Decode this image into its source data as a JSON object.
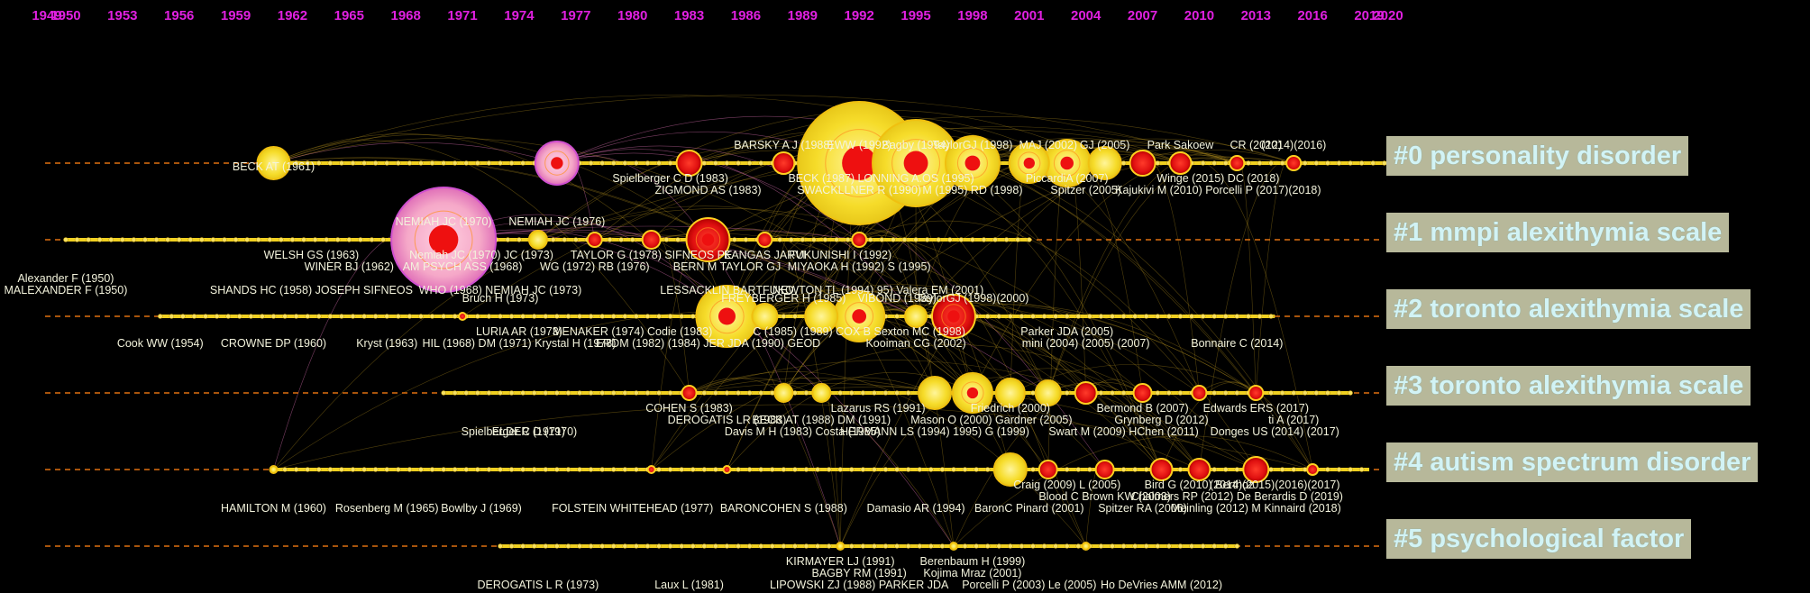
{
  "chart_data": {
    "type": "timeline",
    "years": [
      1949,
      1950,
      1953,
      1956,
      1959,
      1962,
      1965,
      1968,
      1971,
      1974,
      1977,
      1980,
      1983,
      1986,
      1989,
      1992,
      1995,
      1998,
      2001,
      2004,
      2007,
      2010,
      2013,
      2016,
      2019,
      2020
    ],
    "year_range": [
      1949,
      2020
    ],
    "year_label_color": "#e020e0",
    "timeline_color": "#f0d020",
    "dash_color": "#e07010",
    "clusters": [
      {
        "id": 0,
        "label": "#0 personality disorder",
        "start": 1961,
        "end": 2020
      },
      {
        "id": 1,
        "label": "#1 mmpi alexithymia scale",
        "start": 1950,
        "end": 2001
      },
      {
        "id": 2,
        "label": "#2 toronto alexithymia scale",
        "start": 1955,
        "end": 2014
      },
      {
        "id": 3,
        "label": "#3 toronto alexithymia scale",
        "start": 1970,
        "end": 2018
      },
      {
        "id": 4,
        "label": "#4 autism spectrum disorder",
        "start": 1961,
        "end": 2019
      },
      {
        "id": 5,
        "label": "#5 psychological factor",
        "start": 1973,
        "end": 2012
      }
    ],
    "nodes": [
      {
        "cluster": 0,
        "year": 1961,
        "size": 18,
        "color": "yellow"
      },
      {
        "cluster": 0,
        "year": 1976,
        "size": 24,
        "color": "pink"
      },
      {
        "cluster": 0,
        "year": 1983,
        "size": 14,
        "color": "red"
      },
      {
        "cluster": 0,
        "year": 1988,
        "size": 12,
        "color": "red"
      },
      {
        "cluster": 0,
        "year": 1992,
        "size": 68,
        "color": "yellow"
      },
      {
        "cluster": 0,
        "year": 1995,
        "size": 48,
        "color": "yellow"
      },
      {
        "cluster": 0,
        "year": 1998,
        "size": 30,
        "color": "yellow"
      },
      {
        "cluster": 0,
        "year": 2001,
        "size": 22,
        "color": "yellow"
      },
      {
        "cluster": 0,
        "year": 2003,
        "size": 26,
        "color": "yellow"
      },
      {
        "cluster": 0,
        "year": 2005,
        "size": 18,
        "color": "yellow"
      },
      {
        "cluster": 0,
        "year": 2007,
        "size": 14,
        "color": "red"
      },
      {
        "cluster": 0,
        "year": 2009,
        "size": 12,
        "color": "red"
      },
      {
        "cluster": 0,
        "year": 2012,
        "size": 8,
        "color": "red"
      },
      {
        "cluster": 0,
        "year": 2015,
        "size": 8,
        "color": "red"
      },
      {
        "cluster": 1,
        "year": 1970,
        "size": 58,
        "color": "pink"
      },
      {
        "cluster": 1,
        "year": 1975,
        "size": 10,
        "color": "yellow"
      },
      {
        "cluster": 1,
        "year": 1978,
        "size": 8,
        "color": "red"
      },
      {
        "cluster": 1,
        "year": 1981,
        "size": 10,
        "color": "red"
      },
      {
        "cluster": 1,
        "year": 1984,
        "size": 24,
        "color": "red"
      },
      {
        "cluster": 1,
        "year": 1987,
        "size": 8,
        "color": "red"
      },
      {
        "cluster": 1,
        "year": 1992,
        "size": 8,
        "color": "red"
      },
      {
        "cluster": 2,
        "year": 1985,
        "size": 34,
        "color": "yellow"
      },
      {
        "cluster": 2,
        "year": 1987,
        "size": 14,
        "color": "yellow"
      },
      {
        "cluster": 2,
        "year": 1990,
        "size": 18,
        "color": "yellow"
      },
      {
        "cluster": 2,
        "year": 1992,
        "size": 28,
        "color": "yellow"
      },
      {
        "cluster": 2,
        "year": 1995,
        "size": 12,
        "color": "yellow"
      },
      {
        "cluster": 2,
        "year": 1997,
        "size": 24,
        "color": "red"
      },
      {
        "cluster": 2,
        "year": 1971,
        "size": 4,
        "color": "red"
      },
      {
        "cluster": 3,
        "year": 1983,
        "size": 8,
        "color": "red"
      },
      {
        "cluster": 3,
        "year": 1988,
        "size": 10,
        "color": "yellow"
      },
      {
        "cluster": 3,
        "year": 1990,
        "size": 10,
        "color": "yellow"
      },
      {
        "cluster": 3,
        "year": 1996,
        "size": 18,
        "color": "yellow"
      },
      {
        "cluster": 3,
        "year": 1998,
        "size": 22,
        "color": "yellow"
      },
      {
        "cluster": 3,
        "year": 2000,
        "size": 16,
        "color": "yellow"
      },
      {
        "cluster": 3,
        "year": 2002,
        "size": 14,
        "color": "yellow"
      },
      {
        "cluster": 3,
        "year": 2004,
        "size": 12,
        "color": "red"
      },
      {
        "cluster": 3,
        "year": 2007,
        "size": 10,
        "color": "red"
      },
      {
        "cluster": 3,
        "year": 2010,
        "size": 8,
        "color": "red"
      },
      {
        "cluster": 3,
        "year": 2013,
        "size": 8,
        "color": "red"
      },
      {
        "cluster": 4,
        "year": 1961,
        "size": 4,
        "color": "yellow"
      },
      {
        "cluster": 4,
        "year": 1981,
        "size": 4,
        "color": "red"
      },
      {
        "cluster": 4,
        "year": 1985,
        "size": 4,
        "color": "red"
      },
      {
        "cluster": 4,
        "year": 2000,
        "size": 18,
        "color": "yellow"
      },
      {
        "cluster": 4,
        "year": 2002,
        "size": 10,
        "color": "red"
      },
      {
        "cluster": 4,
        "year": 2005,
        "size": 10,
        "color": "red"
      },
      {
        "cluster": 4,
        "year": 2008,
        "size": 12,
        "color": "red"
      },
      {
        "cluster": 4,
        "year": 2010,
        "size": 12,
        "color": "red"
      },
      {
        "cluster": 4,
        "year": 2013,
        "size": 14,
        "color": "red"
      },
      {
        "cluster": 4,
        "year": 2016,
        "size": 6,
        "color": "red"
      },
      {
        "cluster": 5,
        "year": 1991,
        "size": 4,
        "color": "yellow"
      },
      {
        "cluster": 5,
        "year": 1997,
        "size": 4,
        "color": "yellow"
      },
      {
        "cluster": 5,
        "year": 2004,
        "size": 4,
        "color": "yellow"
      }
    ],
    "reference_labels": [
      {
        "cluster": 0,
        "row": 0,
        "year": 1961,
        "text": "BECK AT (1961)"
      },
      {
        "cluster": 0,
        "row": -1,
        "year": 1988,
        "text": "BARSKY A J (1988)"
      },
      {
        "cluster": 0,
        "row": -1,
        "year": 1992,
        "text": "EWW (1992)"
      },
      {
        "cluster": 0,
        "row": -1,
        "year": 1995,
        "text": "Bagby (1994)"
      },
      {
        "cluster": 0,
        "row": -1,
        "year": 1998,
        "text": "TaylorGJ (1998)"
      },
      {
        "cluster": 0,
        "row": -1,
        "year": 2002,
        "text": "MAJ (2002)"
      },
      {
        "cluster": 0,
        "row": -1,
        "year": 2005,
        "text": "GJ (2005)"
      },
      {
        "cluster": 0,
        "row": -1,
        "year": 2009,
        "text": "Park Sakoew"
      },
      {
        "cluster": 0,
        "row": -1,
        "year": 2013,
        "text": "CR (2012)"
      },
      {
        "cluster": 0,
        "row": -1,
        "year": 2015,
        "text": "(2014)(2016)"
      },
      {
        "cluster": 0,
        "row": 1,
        "year": 1982,
        "text": "Spielberger C D (1983)"
      },
      {
        "cluster": 0,
        "row": 1,
        "year": 1990,
        "text": "BECK (1987)"
      },
      {
        "cluster": 0,
        "row": 1,
        "year": 1995,
        "text": "LONNING A.OS (1995)"
      },
      {
        "cluster": 0,
        "row": 1,
        "year": 2003,
        "text": "PiccardiA (2007)"
      },
      {
        "cluster": 0,
        "row": 1,
        "year": 2011,
        "text": "Winge (2015) DC (2018)"
      },
      {
        "cluster": 0,
        "row": 2,
        "year": 1984,
        "text": "ZIGMOND AS (1983)"
      },
      {
        "cluster": 0,
        "row": 2,
        "year": 1992,
        "text": "SWACKLLNER R (1990)"
      },
      {
        "cluster": 0,
        "row": 2,
        "year": 1998,
        "text": "M (1995) RD (1998)"
      },
      {
        "cluster": 0,
        "row": 2,
        "year": 2004,
        "text": "Spitzer (2005)"
      },
      {
        "cluster": 0,
        "row": 2,
        "year": 2011,
        "text": "Kajukivi M (2010) Porcelli P (2017)(2018)"
      },
      {
        "cluster": 1,
        "row": -1,
        "year": 1970,
        "text": "NEMIAH JC (1970)"
      },
      {
        "cluster": 1,
        "row": -1,
        "year": 1976,
        "text": "NEMIAH JC (1976)"
      },
      {
        "cluster": 1,
        "row": 1,
        "year": 1963,
        "text": "WELSH GS (1963)"
      },
      {
        "cluster": 1,
        "row": 1,
        "year": 1972,
        "text": "Nemiah JC (1970) JC (1973)"
      },
      {
        "cluster": 1,
        "row": 1,
        "year": 1981,
        "text": "TAYLOR G (1978) SIFNEOS PE"
      },
      {
        "cluster": 1,
        "row": 1,
        "year": 1987,
        "text": "KANGAS JARVI"
      },
      {
        "cluster": 1,
        "row": 1,
        "year": 1991,
        "text": "FUKUNISHI I (1992)"
      },
      {
        "cluster": 1,
        "row": 2,
        "year": 1965,
        "text": "WINER BJ (1962)"
      },
      {
        "cluster": 1,
        "row": 2,
        "year": 1971,
        "text": "AM PSYCH ASS (1968)"
      },
      {
        "cluster": 1,
        "row": 2,
        "year": 1978,
        "text": "WG (1972) RB (1976)"
      },
      {
        "cluster": 1,
        "row": 2,
        "year": 1985,
        "text": "BERN M TAYLOR GJ"
      },
      {
        "cluster": 1,
        "row": 2,
        "year": 1992,
        "text": "MIYAOKA H (1992) S (1995)"
      },
      {
        "cluster": 1,
        "row": 3,
        "year": 1950,
        "text": "Alexander F (1950)"
      },
      {
        "cluster": 1,
        "row": 4,
        "year": 1950,
        "text": "MALEXANDER F (1950)"
      },
      {
        "cluster": 1,
        "row": 4,
        "year": 1963,
        "text": "SHANDS HC (1958) JOSEPH SIFNEOS"
      },
      {
        "cluster": 1,
        "row": 4,
        "year": 1973,
        "text": "WHO (1968) NEMIAH JC (1973)"
      },
      {
        "cluster": 1,
        "row": 4,
        "year": 1985,
        "text": "LESSACKLIN BARTFUKO"
      },
      {
        "cluster": 1,
        "row": 4,
        "year": 1993,
        "text": "NEWTON TL (1994) 95) Valera EM (2001)"
      },
      {
        "cluster": 2,
        "row": -1,
        "year": 1973,
        "text": "Bruch H (1973)"
      },
      {
        "cluster": 2,
        "row": 1,
        "year": 1974,
        "text": "LURIA AR (1973)"
      },
      {
        "cluster": 2,
        "row": 1,
        "year": 1980,
        "text": "MENAKER (1974) Codie (1983)"
      },
      {
        "cluster": 2,
        "row": -1,
        "year": 1988,
        "text": "FREYBERGER H (1985)"
      },
      {
        "cluster": 2,
        "row": -1,
        "year": 1994,
        "text": "VIBOND (1989)"
      },
      {
        "cluster": 2,
        "row": -1,
        "year": 1998,
        "text": "TaylorGJ (1998)(2000)"
      },
      {
        "cluster": 2,
        "row": 1,
        "year": 1992,
        "text": "C (1985) (1989) COX B Sexton MC (1998)"
      },
      {
        "cluster": 2,
        "row": 1,
        "year": 2003,
        "text": "Parker JDA (2005)"
      },
      {
        "cluster": 2,
        "row": 2,
        "year": 1955,
        "text": "Cook WW (1954)"
      },
      {
        "cluster": 2,
        "row": 2,
        "year": 1961,
        "text": "CROWNE DP (1960)"
      },
      {
        "cluster": 2,
        "row": 2,
        "year": 1967,
        "text": "Kryst (1963)"
      },
      {
        "cluster": 2,
        "row": 2,
        "year": 1974,
        "text": "HIL (1968) DM (1971) Krystal H (1978)"
      },
      {
        "cluster": 2,
        "row": 2,
        "year": 1984,
        "text": "ERDM (1982) (1984) JER JDA (1990) GEOD"
      },
      {
        "cluster": 2,
        "row": 2,
        "year": 1995,
        "text": "Kooiman CG (2002)"
      },
      {
        "cluster": 2,
        "row": 2,
        "year": 2004,
        "text": "mini (2004) (2005) (2007)"
      },
      {
        "cluster": 2,
        "row": 2,
        "year": 2012,
        "text": "Bonnaire C (2014)"
      },
      {
        "cluster": 3,
        "row": 1,
        "year": 1983,
        "text": "COHEN S (1983)"
      },
      {
        "cluster": 3,
        "row": 1,
        "year": 1993,
        "text": "Lazarus RS (1991)"
      },
      {
        "cluster": 3,
        "row": 1,
        "year": 2000,
        "text": "Friedrich (2000)"
      },
      {
        "cluster": 3,
        "row": 1,
        "year": 2007,
        "text": "Bermond B (2007)"
      },
      {
        "cluster": 3,
        "row": 1,
        "year": 2013,
        "text": "Edwards ERS (2017)"
      },
      {
        "cluster": 3,
        "row": 2,
        "year": 1985,
        "text": "DEROGATIS LR (1983)"
      },
      {
        "cluster": 3,
        "row": 2,
        "year": 1990,
        "text": "BECK AT (1988) DM (1991)"
      },
      {
        "cluster": 3,
        "row": 2,
        "year": 1999,
        "text": "Mason O (2000) Gardner (2005)"
      },
      {
        "cluster": 3,
        "row": 2,
        "year": 2008,
        "text": "Grynberg D (2012)"
      },
      {
        "cluster": 3,
        "row": 2,
        "year": 2015,
        "text": "ti A (2017)"
      },
      {
        "cluster": 3,
        "row": 3,
        "year": 1974,
        "text": "Spielberger C D (1970)"
      },
      {
        "cluster": 3,
        "row": 3,
        "year": 1974.5,
        "text": "ELDER (1971)"
      },
      {
        "cluster": 3,
        "row": 3,
        "year": 1989,
        "text": "Davis M H (1983) Costa (1985)"
      },
      {
        "cluster": 3,
        "row": 3,
        "year": 1996,
        "text": "HERMANN LS (1994) 1995) G (1999)"
      },
      {
        "cluster": 3,
        "row": 3,
        "year": 2006,
        "text": "Swart M (2009) HChen (2011)"
      },
      {
        "cluster": 3,
        "row": 3,
        "year": 2014,
        "text": "Donges US (2014) (2017)"
      },
      {
        "cluster": 4,
        "row": 1,
        "year": 2003,
        "text": "Craig (2009) L (2005)"
      },
      {
        "cluster": 4,
        "row": 1,
        "year": 2010,
        "text": "Bird G (2010) Berthoz"
      },
      {
        "cluster": 4,
        "row": 1,
        "year": 2014,
        "text": "(2014)(2015)(2016)(2017)"
      },
      {
        "cluster": 4,
        "row": 2,
        "year": 2005,
        "text": "Blood C Brown KW (2003)"
      },
      {
        "cluster": 4,
        "row": 2,
        "year": 2012,
        "text": "Chalmers RP (2012) De Berardis D (2019)"
      },
      {
        "cluster": 4,
        "row": 3,
        "year": 1961,
        "text": "HAMILTON M (1960)"
      },
      {
        "cluster": 4,
        "row": 3,
        "year": 1967,
        "text": "Rosenberg M (1965)"
      },
      {
        "cluster": 4,
        "row": 3,
        "year": 1972,
        "text": "Bowlby J (1969)"
      },
      {
        "cluster": 4,
        "row": 3,
        "year": 1980,
        "text": "FOLSTEIN WHITEHEAD (1977)"
      },
      {
        "cluster": 4,
        "row": 3,
        "year": 1988,
        "text": "BARONCOHEN S (1988)"
      },
      {
        "cluster": 4,
        "row": 3,
        "year": 1995,
        "text": "Damasio AR (1994)"
      },
      {
        "cluster": 4,
        "row": 3,
        "year": 2001,
        "text": "BaronC Pinard (2001)"
      },
      {
        "cluster": 4,
        "row": 3,
        "year": 2007,
        "text": "Spitzer RA (2006)"
      },
      {
        "cluster": 4,
        "row": 3,
        "year": 2013,
        "text": "Meinling (2012) M Kinnaird (2018)"
      },
      {
        "cluster": 5,
        "row": 1,
        "year": 1991,
        "text": "KIRMAYER LJ (1991)"
      },
      {
        "cluster": 5,
        "row": 1,
        "year": 1998,
        "text": "Berenbaum H (1999)"
      },
      {
        "cluster": 5,
        "row": 2,
        "year": 1992,
        "text": "BAGBY RM (1991)"
      },
      {
        "cluster": 5,
        "row": 2,
        "year": 1998,
        "text": "Kojima Mraz (2001)"
      },
      {
        "cluster": 5,
        "row": 3,
        "year": 1975,
        "text": "DEROGATIS L R (1973)"
      },
      {
        "cluster": 5,
        "row": 3,
        "year": 1983,
        "text": "Laux L (1981)"
      },
      {
        "cluster": 5,
        "row": 3,
        "year": 1992,
        "text": "LIPOWSKI ZJ (1988) PARKER JDA"
      },
      {
        "cluster": 5,
        "row": 3,
        "year": 2001,
        "text": "Porcelli P (2003) Le (2005)"
      },
      {
        "cluster": 5,
        "row": 3,
        "year": 2008,
        "text": "Ho DeVries AMM (2012)"
      }
    ]
  }
}
